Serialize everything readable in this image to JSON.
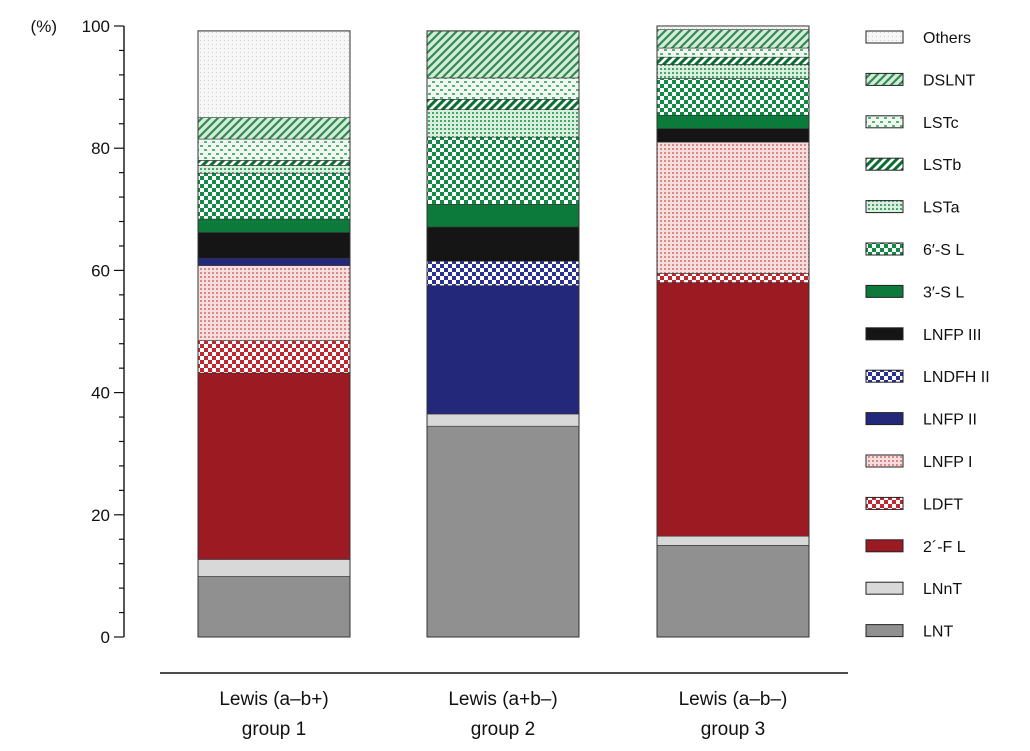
{
  "chart_data": {
    "type": "bar",
    "stacked": true,
    "y_unit_label": "(%)",
    "ylim": [
      0,
      100
    ],
    "y_ticks": [
      "0",
      "20",
      "40",
      "60",
      "80",
      "100"
    ],
    "grid": false,
    "legend_position": "right",
    "categories": [
      [
        "Lewis (a–b+)",
        "group 1"
      ],
      [
        "Lewis (a+b–)",
        "group 2"
      ],
      [
        "Lewis (a–b–)",
        "group 3"
      ]
    ],
    "series": [
      {
        "name": "LNT",
        "color": "#909090",
        "pattern": "solid-gray",
        "values": [
          9.9,
          34.5,
          15.0
        ]
      },
      {
        "name": "LNnT",
        "color": "#d8d8d8",
        "pattern": "solid-light",
        "values": [
          2.8,
          2.0,
          1.5
        ]
      },
      {
        "name": "2´-F L",
        "color": "#9c1b22",
        "pattern": "solid-red",
        "values": [
          30.5,
          0,
          41.5
        ]
      },
      {
        "name": "LDFT",
        "color": "#c0282f",
        "pattern": "checker-red",
        "values": [
          5.3,
          0,
          1.5
        ]
      },
      {
        "name": "LNFP I",
        "color": "#e9b4b4",
        "pattern": "dots-pink",
        "values": [
          12.3,
          0,
          21.5
        ]
      },
      {
        "name": "LNFP II",
        "color": "#23287a",
        "pattern": "solid-navy",
        "values": [
          1.2,
          21.0,
          0
        ]
      },
      {
        "name": "LNDFH II",
        "color": "#2a3194",
        "pattern": "checker-blue",
        "values": [
          0,
          4.0,
          0
        ]
      },
      {
        "name": "LNFP III",
        "color": "#151515",
        "pattern": "solid-black",
        "values": [
          4.2,
          5.6,
          2.2
        ]
      },
      {
        "name": "3′-S L",
        "color": "#0b7a3a",
        "pattern": "solid-green",
        "values": [
          2.2,
          3.7,
          2.2
        ]
      },
      {
        "name": "6′-S L",
        "color": "#128a45",
        "pattern": "checker-green",
        "values": [
          7.5,
          11.0,
          6.0
        ]
      },
      {
        "name": "LSTa",
        "color": "#7cc28f",
        "pattern": "dots-green",
        "values": [
          1.3,
          4.5,
          2.3
        ]
      },
      {
        "name": "LSTb",
        "color": "#0b6f34",
        "pattern": "stripes-dark-green",
        "values": [
          0.8,
          1.7,
          1.2
        ]
      },
      {
        "name": "LSTc",
        "color": "#8fce9f",
        "pattern": "dashes-green",
        "values": [
          3.5,
          3.5,
          1.5
        ]
      },
      {
        "name": "DSLNT",
        "color": "#3e9a5c",
        "pattern": "hatch-green",
        "values": [
          3.5,
          7.7,
          3.0
        ]
      },
      {
        "name": "Others",
        "color": "#f0f0f0",
        "pattern": "dots-light",
        "values": [
          14.2,
          0,
          0.6
        ]
      }
    ],
    "legend_order": [
      "Others",
      "DSLNT",
      "LSTc",
      "LSTb",
      "LSTa",
      "6′-S L",
      "3′-S L",
      "LNFP III",
      "LNDFH II",
      "LNFP II",
      "LNFP I",
      "LDFT",
      "2´-F L",
      "LNnT",
      "LNT"
    ]
  }
}
